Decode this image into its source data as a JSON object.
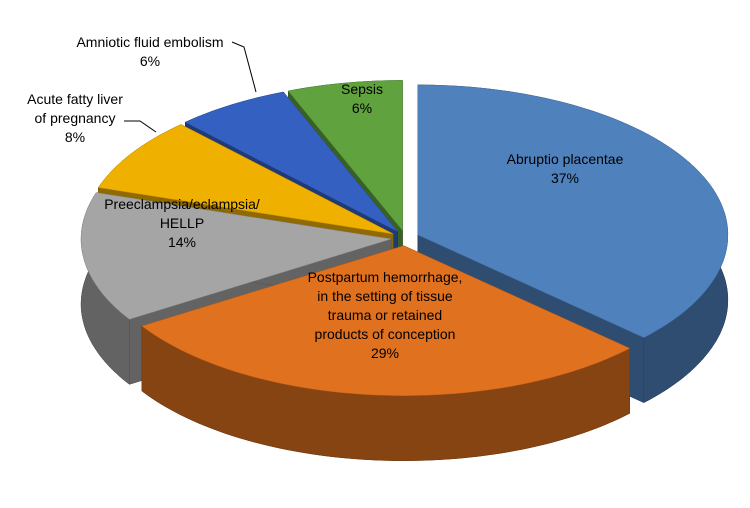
{
  "chart_data": {
    "type": "pie3d",
    "categories": [
      "Abruptio placentae",
      "Postpartum hemorrhage,\nin the setting of tissue\ntrauma or retained\nproducts of conception",
      "Preeclampsia/eclampsia/\nHELLP",
      "Acute fatty liver\nof pregnancy",
      "Amniotic fluid embolism",
      "Sepsis"
    ],
    "values": [
      37,
      29,
      14,
      8,
      6,
      6
    ],
    "value_labels": [
      "37%",
      "29%",
      "14%",
      "8%",
      "6%",
      "6%"
    ],
    "colors": [
      "#4f81bd",
      "#e0711f",
      "#a5a5a5",
      "#f0b000",
      "#3461c1",
      "#5fa23e"
    ]
  }
}
